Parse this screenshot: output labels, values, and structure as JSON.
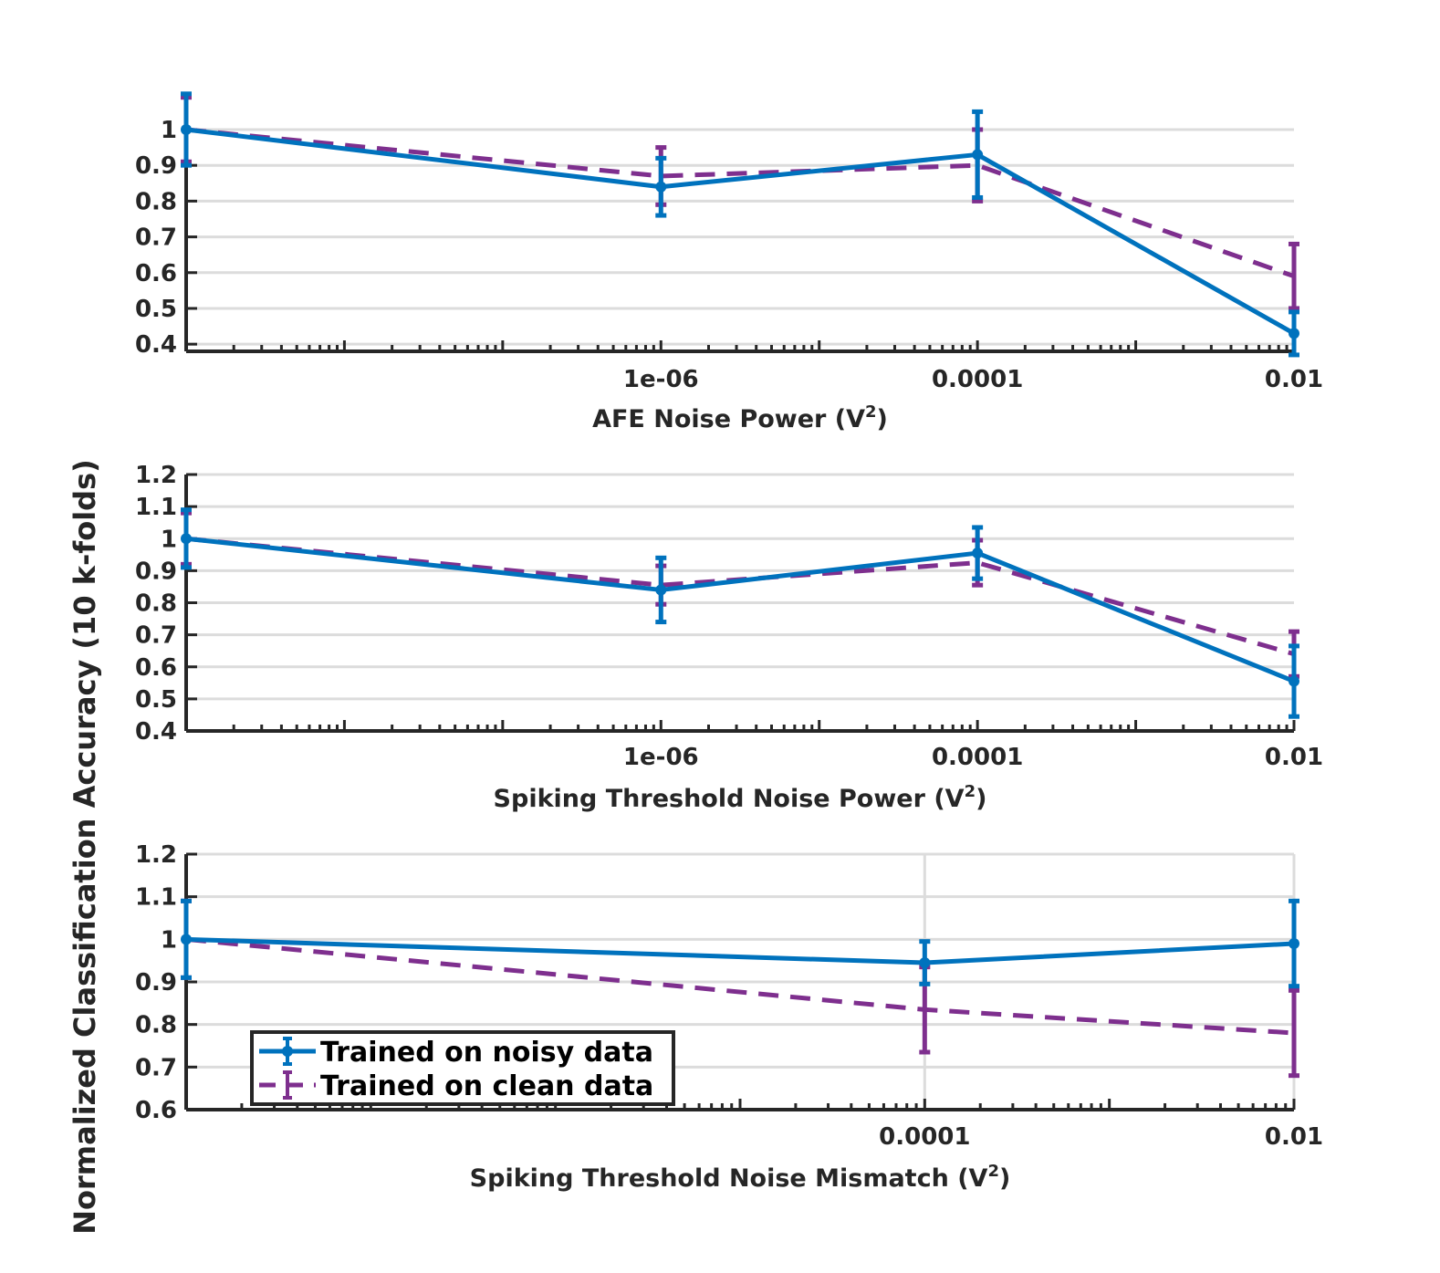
{
  "figure": {
    "ylabel": "Normalized Classification Accuracy (10 k-folds)"
  },
  "legend": {
    "items": [
      {
        "label": "Trained on noisy data",
        "color": "#0072BD",
        "style": "solid"
      },
      {
        "label": "Trained on clean data",
        "color": "#7E2F8E",
        "style": "dashed"
      }
    ],
    "placement": "bottom-left of third panel"
  },
  "chart_data": [
    {
      "type": "line",
      "xlabel": "AFE Noise Power (V",
      "xlabel_sup": "2",
      "xlabel_end": ")",
      "xscale": "log",
      "xlim_exp": [
        -9,
        -2
      ],
      "xticks": [
        {
          "value": 1e-06,
          "label": "1e-06"
        },
        {
          "value": 0.0001,
          "label": "0.0001"
        },
        {
          "value": 0.01,
          "label": "0.01"
        }
      ],
      "ylim": [
        0.38,
        1.1
      ],
      "yticks": [
        {
          "value": 0.4,
          "label": "0.4"
        },
        {
          "value": 0.5,
          "label": "0.5"
        },
        {
          "value": 0.6,
          "label": "0.6"
        },
        {
          "value": 0.7,
          "label": "0.7"
        },
        {
          "value": 0.8,
          "label": "0.8"
        },
        {
          "value": 0.9,
          "label": "0.9"
        },
        {
          "value": 1.0,
          "label": "1"
        }
      ],
      "grid": "horizontal",
      "series": [
        {
          "name": "Trained on noisy data",
          "x": [
            1e-09,
            1e-06,
            0.0001,
            0.01
          ],
          "y": [
            1.0,
            0.84,
            0.93,
            0.43
          ],
          "err": [
            0.1,
            0.08,
            0.12,
            0.06
          ]
        },
        {
          "name": "Trained on clean data",
          "x": [
            1e-09,
            1e-06,
            0.0001,
            0.01
          ],
          "y": [
            1.0,
            0.87,
            0.9,
            0.59
          ],
          "err": [
            0.09,
            0.08,
            0.1,
            0.09
          ]
        }
      ]
    },
    {
      "type": "line",
      "xlabel": "Spiking Threshold Noise Power (V",
      "xlabel_sup": "2",
      "xlabel_end": ")",
      "xscale": "log",
      "xlim_exp": [
        -9,
        -2
      ],
      "xticks": [
        {
          "value": 1e-06,
          "label": "1e-06"
        },
        {
          "value": 0.0001,
          "label": "0.0001"
        },
        {
          "value": 0.01,
          "label": "0.01"
        }
      ],
      "ylim": [
        0.4,
        1.2
      ],
      "yticks": [
        {
          "value": 0.4,
          "label": "0.4"
        },
        {
          "value": 0.5,
          "label": "0.5"
        },
        {
          "value": 0.6,
          "label": "0.6"
        },
        {
          "value": 0.7,
          "label": "0.7"
        },
        {
          "value": 0.8,
          "label": "0.8"
        },
        {
          "value": 0.9,
          "label": "0.9"
        },
        {
          "value": 1.0,
          "label": "1"
        },
        {
          "value": 1.1,
          "label": "1.1"
        },
        {
          "value": 1.2,
          "label": "1.2"
        }
      ],
      "grid": "horizontal",
      "series": [
        {
          "name": "Trained on noisy data",
          "x": [
            1e-09,
            1e-06,
            0.0001,
            0.01
          ],
          "y": [
            1.0,
            0.84,
            0.955,
            0.555
          ],
          "err": [
            0.09,
            0.1,
            0.08,
            0.11
          ]
        },
        {
          "name": "Trained on clean data",
          "x": [
            1e-09,
            1e-06,
            0.0001,
            0.01
          ],
          "y": [
            1.0,
            0.855,
            0.925,
            0.64
          ],
          "err": [
            0.08,
            0.06,
            0.07,
            0.07
          ]
        }
      ]
    },
    {
      "type": "line",
      "xlabel": "Spiking Threshold Noise Mismatch (V",
      "xlabel_sup": "2",
      "xlabel_end": ")",
      "xscale": "log",
      "xlim_exp": [
        -8,
        -2
      ],
      "xticks": [
        {
          "value": 0.0001,
          "label": "0.0001"
        },
        {
          "value": 0.01,
          "label": "0.01"
        }
      ],
      "ylim": [
        0.6,
        1.2
      ],
      "yticks": [
        {
          "value": 0.6,
          "label": "0.6"
        },
        {
          "value": 0.7,
          "label": "0.7"
        },
        {
          "value": 0.8,
          "label": "0.8"
        },
        {
          "value": 0.9,
          "label": "0.9"
        },
        {
          "value": 1.0,
          "label": "1"
        },
        {
          "value": 1.1,
          "label": "1.1"
        },
        {
          "value": 1.2,
          "label": "1.2"
        }
      ],
      "grid": "horizontal + vertical at major ticks",
      "series": [
        {
          "name": "Trained on noisy data",
          "x": [
            1e-08,
            0.0001,
            0.01
          ],
          "y": [
            1.0,
            0.945,
            0.99
          ],
          "err": [
            0.09,
            0.05,
            0.1
          ]
        },
        {
          "name": "Trained on clean data",
          "x": [
            1e-08,
            0.0001,
            0.01
          ],
          "y": [
            1.0,
            0.835,
            0.78
          ],
          "err": [
            0.09,
            0.1,
            0.1
          ]
        }
      ]
    }
  ]
}
